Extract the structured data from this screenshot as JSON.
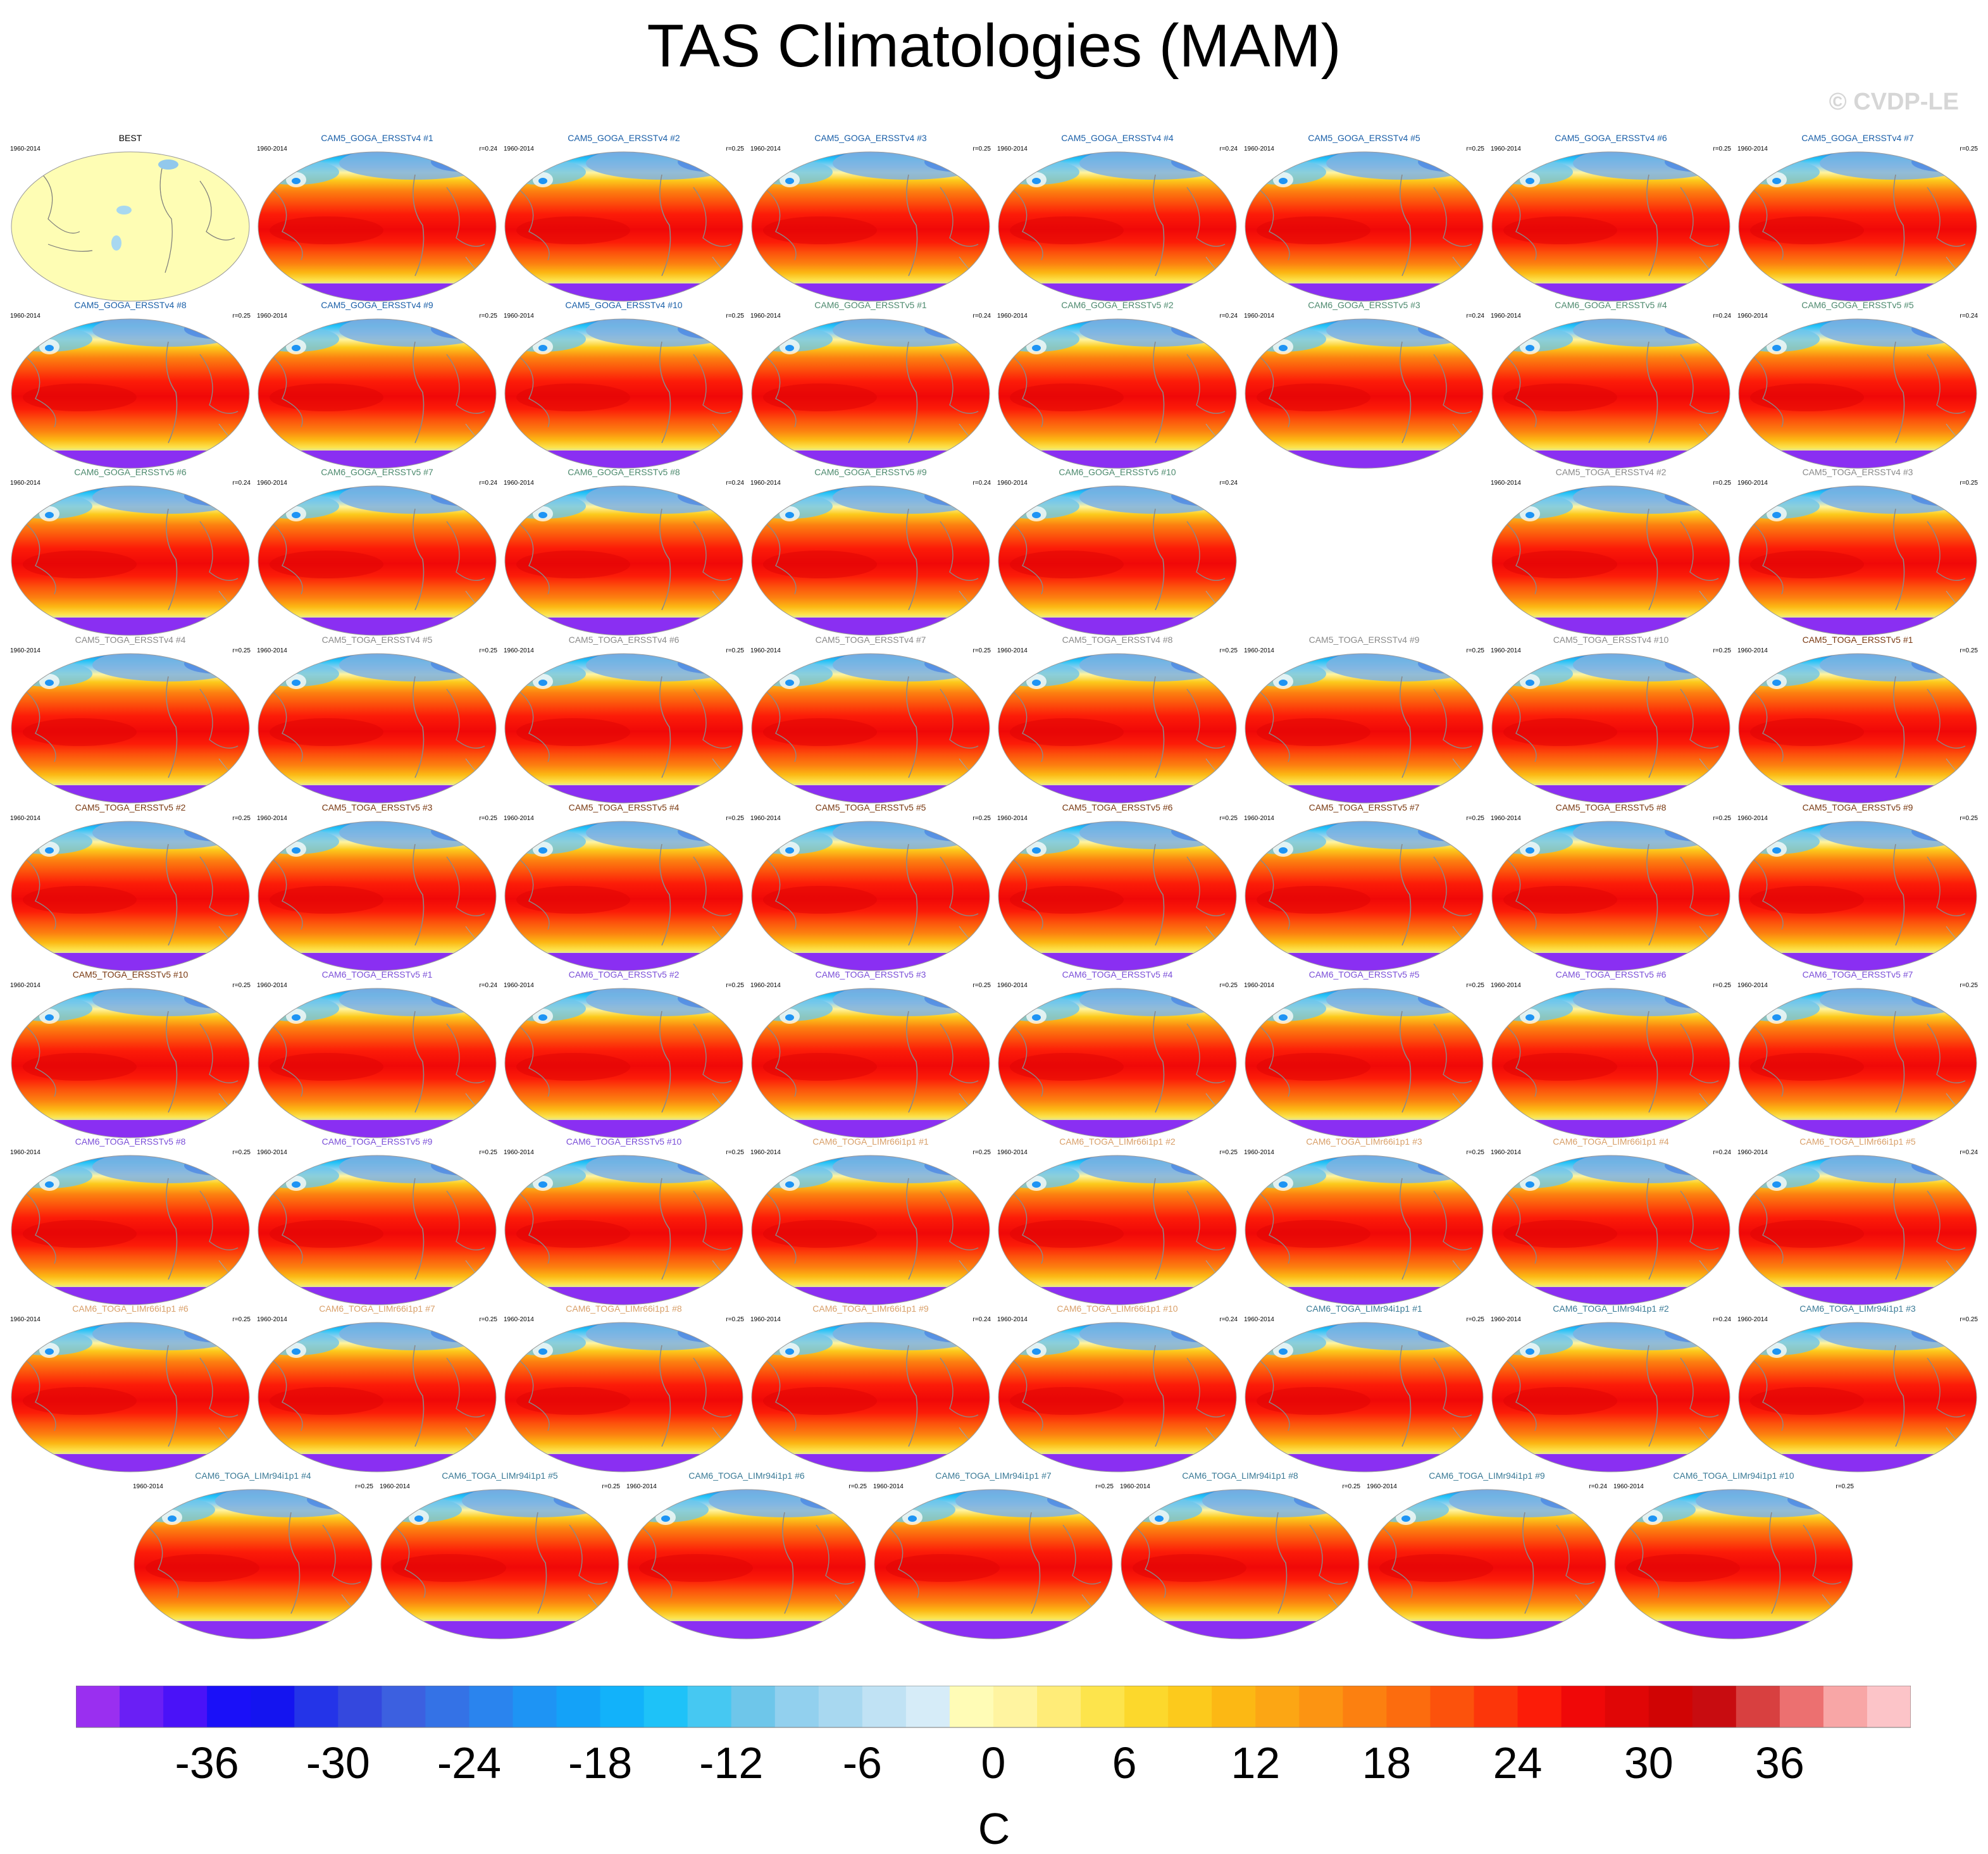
{
  "title": "TAS Climatologies (MAM)",
  "watermark": "© CVDP-LE",
  "chart_data": {
    "type": "heatmap",
    "title": "TAS Climatologies (MAM)",
    "projection": "robinson-style global maps (Pacific-centered)",
    "panels": [
      {
        "name": "BEST",
        "period": "1960-2014",
        "r": "",
        "color": "#000000",
        "kind": "obs"
      },
      {
        "name": "CAM5_GOGA_ERSSTv4 #1",
        "period": "1960-2014",
        "r": "r=0.24",
        "color": "#1a5fa8"
      },
      {
        "name": "CAM5_GOGA_ERSSTv4 #2",
        "period": "1960-2014",
        "r": "r=0.25",
        "color": "#1a5fa8"
      },
      {
        "name": "CAM5_GOGA_ERSSTv4 #3",
        "period": "1960-2014",
        "r": "r=0.25",
        "color": "#1a5fa8"
      },
      {
        "name": "CAM5_GOGA_ERSSTv4 #4",
        "period": "1960-2014",
        "r": "r=0.24",
        "color": "#1a5fa8"
      },
      {
        "name": "CAM5_GOGA_ERSSTv4 #5",
        "period": "1960-2014",
        "r": "r=0.25",
        "color": "#1a5fa8"
      },
      {
        "name": "CAM5_GOGA_ERSSTv4 #6",
        "period": "1960-2014",
        "r": "r=0.25",
        "color": "#1a5fa8"
      },
      {
        "name": "CAM5_GOGA_ERSSTv4 #7",
        "period": "1960-2014",
        "r": "r=0.25",
        "color": "#1a5fa8"
      },
      {
        "name": "CAM5_GOGA_ERSSTv4 #8",
        "period": "1960-2014",
        "r": "r=0.25",
        "color": "#1a5fa8"
      },
      {
        "name": "CAM5_GOGA_ERSSTv4 #9",
        "period": "1960-2014",
        "r": "r=0.25",
        "color": "#1a5fa8"
      },
      {
        "name": "CAM5_GOGA_ERSSTv4 #10",
        "period": "1960-2014",
        "r": "r=0.25",
        "color": "#1a5fa8"
      },
      {
        "name": "CAM6_GOGA_ERSSTv5 #1",
        "period": "1960-2014",
        "r": "r=0.24",
        "color": "#4d8a6e"
      },
      {
        "name": "CAM6_GOGA_ERSSTv5 #2",
        "period": "1960-2014",
        "r": "r=0.24",
        "color": "#4d8a6e"
      },
      {
        "name": "CAM6_GOGA_ERSSTv5 #3",
        "period": "1960-2014",
        "r": "r=0.24",
        "color": "#4d8a6e"
      },
      {
        "name": "CAM6_GOGA_ERSSTv5 #4",
        "period": "1960-2014",
        "r": "r=0.24",
        "color": "#4d8a6e"
      },
      {
        "name": "CAM6_GOGA_ERSSTv5 #5",
        "period": "1960-2014",
        "r": "r=0.24",
        "color": "#4d8a6e"
      },
      {
        "name": "CAM6_GOGA_ERSSTv5 #6",
        "period": "1960-2014",
        "r": "r=0.24",
        "color": "#4d8a6e"
      },
      {
        "name": "CAM6_GOGA_ERSSTv5 #7",
        "period": "1960-2014",
        "r": "r=0.24",
        "color": "#4d8a6e"
      },
      {
        "name": "CAM6_GOGA_ERSSTv5 #8",
        "period": "1960-2014",
        "r": "r=0.24",
        "color": "#4d8a6e"
      },
      {
        "name": "CAM6_GOGA_ERSSTv5 #9",
        "period": "1960-2014",
        "r": "r=0.24",
        "color": "#4d8a6e"
      },
      {
        "name": "CAM6_GOGA_ERSSTv5 #10",
        "period": "1960-2014",
        "r": "r=0.24",
        "color": "#4d8a6e"
      },
      {
        "name": "",
        "period": "",
        "r": "",
        "color": "#ffffff",
        "kind": "empty"
      },
      {
        "name": "CAM5_TOGA_ERSSTv4 #2",
        "period": "1960-2014",
        "r": "r=0.25",
        "color": "#8a8a8a"
      },
      {
        "name": "CAM5_TOGA_ERSSTv4 #3",
        "period": "1960-2014",
        "r": "r=0.25",
        "color": "#8a8a8a"
      },
      {
        "name": "CAM5_TOGA_ERSSTv4 #4",
        "period": "1960-2014",
        "r": "r=0.25",
        "color": "#8a8a8a"
      },
      {
        "name": "CAM5_TOGA_ERSSTv4 #5",
        "period": "1960-2014",
        "r": "r=0.25",
        "color": "#8a8a8a"
      },
      {
        "name": "CAM5_TOGA_ERSSTv4 #6",
        "period": "1960-2014",
        "r": "r=0.25",
        "color": "#8a8a8a"
      },
      {
        "name": "CAM5_TOGA_ERSSTv4 #7",
        "period": "1960-2014",
        "r": "r=0.25",
        "color": "#8a8a8a"
      },
      {
        "name": "CAM5_TOGA_ERSSTv4 #8",
        "period": "1960-2014",
        "r": "r=0.25",
        "color": "#8a8a8a"
      },
      {
        "name": "CAM5_TOGA_ERSSTv4 #9",
        "period": "1960-2014",
        "r": "r=0.25",
        "color": "#8a8a8a"
      },
      {
        "name": "CAM5_TOGA_ERSSTv4 #10",
        "period": "1960-2014",
        "r": "r=0.25",
        "color": "#8a8a8a"
      },
      {
        "name": "CAM5_TOGA_ERSSTv5 #1",
        "period": "1960-2014",
        "r": "r=0.25",
        "color": "#7a3a12"
      },
      {
        "name": "CAM5_TOGA_ERSSTv5 #2",
        "period": "1960-2014",
        "r": "r=0.25",
        "color": "#7a3a12"
      },
      {
        "name": "CAM5_TOGA_ERSSTv5 #3",
        "period": "1960-2014",
        "r": "r=0.25",
        "color": "#7a3a12"
      },
      {
        "name": "CAM5_TOGA_ERSSTv5 #4",
        "period": "1960-2014",
        "r": "r=0.25",
        "color": "#7a3a12"
      },
      {
        "name": "CAM5_TOGA_ERSSTv5 #5",
        "period": "1960-2014",
        "r": "r=0.25",
        "color": "#7a3a12"
      },
      {
        "name": "CAM5_TOGA_ERSSTv5 #6",
        "period": "1960-2014",
        "r": "r=0.25",
        "color": "#7a3a12"
      },
      {
        "name": "CAM5_TOGA_ERSSTv5 #7",
        "period": "1960-2014",
        "r": "r=0.25",
        "color": "#7a3a12"
      },
      {
        "name": "CAM5_TOGA_ERSSTv5 #8",
        "period": "1960-2014",
        "r": "r=0.25",
        "color": "#7a3a12"
      },
      {
        "name": "CAM5_TOGA_ERSSTv5 #9",
        "period": "1960-2014",
        "r": "r=0.25",
        "color": "#7a3a12"
      },
      {
        "name": "CAM5_TOGA_ERSSTv5 #10",
        "period": "1960-2014",
        "r": "r=0.25",
        "color": "#7a3a12"
      },
      {
        "name": "CAM6_TOGA_ERSSTv5 #1",
        "period": "1960-2014",
        "r": "r=0.24",
        "color": "#7b4fd8"
      },
      {
        "name": "CAM6_TOGA_ERSSTv5 #2",
        "period": "1960-2014",
        "r": "r=0.25",
        "color": "#7b4fd8"
      },
      {
        "name": "CAM6_TOGA_ERSSTv5 #3",
        "period": "1960-2014",
        "r": "r=0.25",
        "color": "#7b4fd8"
      },
      {
        "name": "CAM6_TOGA_ERSSTv5 #4",
        "period": "1960-2014",
        "r": "r=0.25",
        "color": "#7b4fd8"
      },
      {
        "name": "CAM6_TOGA_ERSSTv5 #5",
        "period": "1960-2014",
        "r": "r=0.25",
        "color": "#7b4fd8"
      },
      {
        "name": "CAM6_TOGA_ERSSTv5 #6",
        "period": "1960-2014",
        "r": "r=0.25",
        "color": "#7b4fd8"
      },
      {
        "name": "CAM6_TOGA_ERSSTv5 #7",
        "period": "1960-2014",
        "r": "r=0.25",
        "color": "#7b4fd8"
      },
      {
        "name": "CAM6_TOGA_ERSSTv5 #8",
        "period": "1960-2014",
        "r": "r=0.25",
        "color": "#7b4fd8"
      },
      {
        "name": "CAM6_TOGA_ERSSTv5 #9",
        "period": "1960-2014",
        "r": "r=0.25",
        "color": "#7b4fd8"
      },
      {
        "name": "CAM6_TOGA_ERSSTv5 #10",
        "period": "1960-2014",
        "r": "r=0.25",
        "color": "#7b4fd8"
      },
      {
        "name": "CAM6_TOGA_LIMr66i1p1 #1",
        "period": "1960-2014",
        "r": "r=0.25",
        "color": "#d9a06a"
      },
      {
        "name": "CAM6_TOGA_LIMr66i1p1 #2",
        "period": "1960-2014",
        "r": "r=0.25",
        "color": "#d9a06a"
      },
      {
        "name": "CAM6_TOGA_LIMr66i1p1 #3",
        "period": "1960-2014",
        "r": "r=0.25",
        "color": "#d9a06a"
      },
      {
        "name": "CAM6_TOGA_LIMr66i1p1 #4",
        "period": "1960-2014",
        "r": "r=0.24",
        "color": "#d9a06a"
      },
      {
        "name": "CAM6_TOGA_LIMr66i1p1 #5",
        "period": "1960-2014",
        "r": "r=0.24",
        "color": "#d9a06a"
      },
      {
        "name": "CAM6_TOGA_LIMr66i1p1 #6",
        "period": "1960-2014",
        "r": "r=0.25",
        "color": "#d9a06a"
      },
      {
        "name": "CAM6_TOGA_LIMr66i1p1 #7",
        "period": "1960-2014",
        "r": "r=0.25",
        "color": "#d9a06a"
      },
      {
        "name": "CAM6_TOGA_LIMr66i1p1 #8",
        "period": "1960-2014",
        "r": "r=0.25",
        "color": "#d9a06a"
      },
      {
        "name": "CAM6_TOGA_LIMr66i1p1 #9",
        "period": "1960-2014",
        "r": "r=0.24",
        "color": "#d9a06a"
      },
      {
        "name": "CAM6_TOGA_LIMr66i1p1 #10",
        "period": "1960-2014",
        "r": "r=0.24",
        "color": "#d9a06a"
      },
      {
        "name": "CAM6_TOGA_LIMr94i1p1 #1",
        "period": "1960-2014",
        "r": "r=0.25",
        "color": "#3a7a96"
      },
      {
        "name": "CAM6_TOGA_LIMr94i1p1 #2",
        "period": "1960-2014",
        "r": "r=0.24",
        "color": "#3a7a96"
      },
      {
        "name": "CAM6_TOGA_LIMr94i1p1 #3",
        "period": "1960-2014",
        "r": "r=0.25",
        "color": "#3a7a96"
      },
      {
        "name": "CAM6_TOGA_LIMr94i1p1 #4",
        "period": "1960-2014",
        "r": "r=0.25",
        "color": "#3a7a96"
      },
      {
        "name": "CAM6_TOGA_LIMr94i1p1 #5",
        "period": "1960-2014",
        "r": "r=0.25",
        "color": "#3a7a96"
      },
      {
        "name": "CAM6_TOGA_LIMr94i1p1 #6",
        "period": "1960-2014",
        "r": "r=0.25",
        "color": "#3a7a96"
      },
      {
        "name": "CAM6_TOGA_LIMr94i1p1 #7",
        "period": "1960-2014",
        "r": "r=0.25",
        "color": "#3a7a96"
      },
      {
        "name": "CAM6_TOGA_LIMr94i1p1 #8",
        "period": "1960-2014",
        "r": "r=0.25",
        "color": "#3a7a96"
      },
      {
        "name": "CAM6_TOGA_LIMr94i1p1 #9",
        "period": "1960-2014",
        "r": "r=0.24",
        "color": "#3a7a96"
      },
      {
        "name": "CAM6_TOGA_LIMr94i1p1 #10",
        "period": "1960-2014",
        "r": "r=0.25",
        "color": "#3a7a96"
      }
    ],
    "colorbar": {
      "units": "C",
      "vmin": -42,
      "vmax": 42,
      "step": 2,
      "tick_labels": [
        "-36",
        "-30",
        "-24",
        "-18",
        "-12",
        "-6",
        "0",
        "6",
        "12",
        "18",
        "24",
        "30",
        "36"
      ],
      "tick_values": [
        -36,
        -30,
        -24,
        -18,
        -12,
        -6,
        0,
        6,
        12,
        18,
        24,
        30,
        36
      ],
      "colors": [
        "#9a2ff0",
        "#6a1ff5",
        "#4a12f8",
        "#1a10f8",
        "#1414f0",
        "#2434e8",
        "#3448de",
        "#3c60e0",
        "#3472e6",
        "#2a84ee",
        "#1e94f4",
        "#14a2f8",
        "#12b2fa",
        "#1ec2f8",
        "#46c8f2",
        "#6ec6ea",
        "#92d0ee",
        "#a8d8f0",
        "#c0e2f4",
        "#d6ecf8",
        "#fffcb6",
        "#fff4a0",
        "#ffec78",
        "#fde44c",
        "#fcd82c",
        "#fcca1c",
        "#fcb814",
        "#fca614",
        "#fc9412",
        "#fc8010",
        "#fc6c0e",
        "#fc520c",
        "#fc360a",
        "#fc1c08",
        "#f00808",
        "#e00606",
        "#d00404",
        "#c80c10",
        "#d84040",
        "#ec7070",
        "#f8a6a6",
        "#fcc4c8"
      ]
    }
  }
}
